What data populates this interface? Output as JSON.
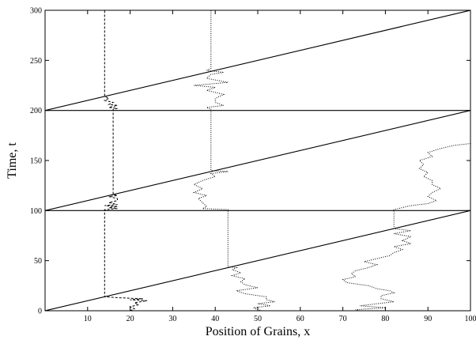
{
  "chart_data": {
    "type": "line",
    "title": "",
    "xlabel": "Position of Grains, x",
    "ylabel": "Time, t",
    "xlim": [
      0,
      100
    ],
    "ylim": [
      0,
      300
    ],
    "xticks": [
      10,
      20,
      30,
      40,
      50,
      60,
      70,
      80,
      90,
      100
    ],
    "yticks": [
      0,
      50,
      100,
      150,
      200,
      250,
      300
    ],
    "grid": false,
    "legend": "none",
    "boundary_lines": [
      {
        "x": [
          0,
          100
        ],
        "y": [
          0,
          100
        ]
      },
      {
        "x": [
          0,
          100
        ],
        "y": [
          100,
          100
        ]
      },
      {
        "x": [
          0,
          100
        ],
        "y": [
          100,
          200
        ]
      },
      {
        "x": [
          0,
          100
        ],
        "y": [
          200,
          200
        ]
      },
      {
        "x": [
          0,
          100
        ],
        "y": [
          200,
          300
        ]
      }
    ],
    "series": [
      {
        "style": "dashed",
        "points": [
          [
            20,
            0
          ],
          [
            21,
            2
          ],
          [
            20,
            4
          ],
          [
            22,
            6
          ],
          [
            21,
            8
          ],
          [
            24,
            10
          ],
          [
            20,
            11
          ],
          [
            23,
            12
          ],
          [
            17,
            13
          ],
          [
            14,
            14
          ],
          [
            14,
            100
          ],
          [
            14,
            101
          ],
          [
            17,
            102
          ],
          [
            15,
            103
          ],
          [
            17,
            104
          ],
          [
            14,
            105
          ],
          [
            17,
            106
          ],
          [
            15,
            108
          ],
          [
            17,
            110
          ],
          [
            17,
            112
          ],
          [
            15,
            114
          ],
          [
            17,
            115
          ],
          [
            16,
            116
          ],
          [
            16,
            200
          ],
          [
            16,
            201
          ],
          [
            17,
            202
          ],
          [
            15,
            203
          ],
          [
            17,
            205
          ],
          [
            15,
            206
          ],
          [
            16,
            208
          ],
          [
            14,
            210
          ],
          [
            15,
            212
          ],
          [
            14,
            214
          ],
          [
            14,
            216
          ],
          [
            14,
            300
          ]
        ]
      },
      {
        "style": "dotted",
        "points": [
          [
            51,
            0
          ],
          [
            50,
            1
          ],
          [
            49,
            3
          ],
          [
            53,
            5
          ],
          [
            50,
            7
          ],
          [
            54,
            9
          ],
          [
            52,
            11
          ],
          [
            52,
            14
          ],
          [
            47,
            17
          ],
          [
            45,
            20
          ],
          [
            50,
            23
          ],
          [
            47,
            26
          ],
          [
            46,
            29
          ],
          [
            47,
            32
          ],
          [
            44,
            35
          ],
          [
            46,
            38
          ],
          [
            44,
            41
          ],
          [
            45,
            43
          ],
          [
            43,
            44
          ],
          [
            43,
            100
          ],
          [
            43,
            101
          ],
          [
            37,
            102
          ],
          [
            38,
            104
          ],
          [
            37,
            108
          ],
          [
            36,
            112
          ],
          [
            38,
            115
          ],
          [
            35,
            118
          ],
          [
            37,
            122
          ],
          [
            35,
            126
          ],
          [
            37,
            130
          ],
          [
            40,
            134
          ],
          [
            39,
            137
          ],
          [
            43,
            139
          ],
          [
            39,
            140
          ],
          [
            39,
            200
          ],
          [
            39,
            201
          ],
          [
            38,
            203
          ],
          [
            42,
            205
          ],
          [
            40,
            208
          ],
          [
            40,
            212
          ],
          [
            42,
            216
          ],
          [
            38,
            220
          ],
          [
            40,
            223
          ],
          [
            35,
            225
          ],
          [
            43,
            228
          ],
          [
            38,
            232
          ],
          [
            39,
            236
          ],
          [
            42,
            238
          ],
          [
            38,
            240
          ],
          [
            39,
            242
          ],
          [
            39,
            300
          ]
        ]
      },
      {
        "style": "dotted",
        "points": [
          [
            74,
            0
          ],
          [
            73,
            1
          ],
          [
            80,
            3
          ],
          [
            74,
            5
          ],
          [
            82,
            9
          ],
          [
            79,
            12
          ],
          [
            79,
            15
          ],
          [
            82,
            18
          ],
          [
            81,
            20
          ],
          [
            78,
            22
          ],
          [
            76,
            25
          ],
          [
            71,
            28
          ],
          [
            70,
            31
          ],
          [
            73,
            34
          ],
          [
            72,
            37
          ],
          [
            73,
            40
          ],
          [
            76,
            43
          ],
          [
            78,
            46
          ],
          [
            75,
            49
          ],
          [
            78,
            52
          ],
          [
            81,
            55
          ],
          [
            82,
            58
          ],
          [
            84,
            61
          ],
          [
            82,
            64
          ],
          [
            86,
            67
          ],
          [
            84,
            70
          ],
          [
            86,
            74
          ],
          [
            82,
            77
          ],
          [
            86,
            80
          ],
          [
            82,
            82
          ],
          [
            82,
            100
          ],
          [
            82,
            101
          ],
          [
            84,
            103
          ],
          [
            86,
            105
          ],
          [
            90,
            107
          ],
          [
            92,
            110
          ],
          [
            90,
            114
          ],
          [
            91,
            118
          ],
          [
            93,
            122
          ],
          [
            91,
            126
          ],
          [
            91,
            130
          ],
          [
            89,
            134
          ],
          [
            90,
            138
          ],
          [
            88,
            142
          ],
          [
            89,
            146
          ],
          [
            88,
            150
          ],
          [
            91,
            154
          ],
          [
            90,
            158
          ],
          [
            93,
            162
          ],
          [
            96,
            165
          ],
          [
            100,
            167
          ]
        ]
      }
    ]
  }
}
